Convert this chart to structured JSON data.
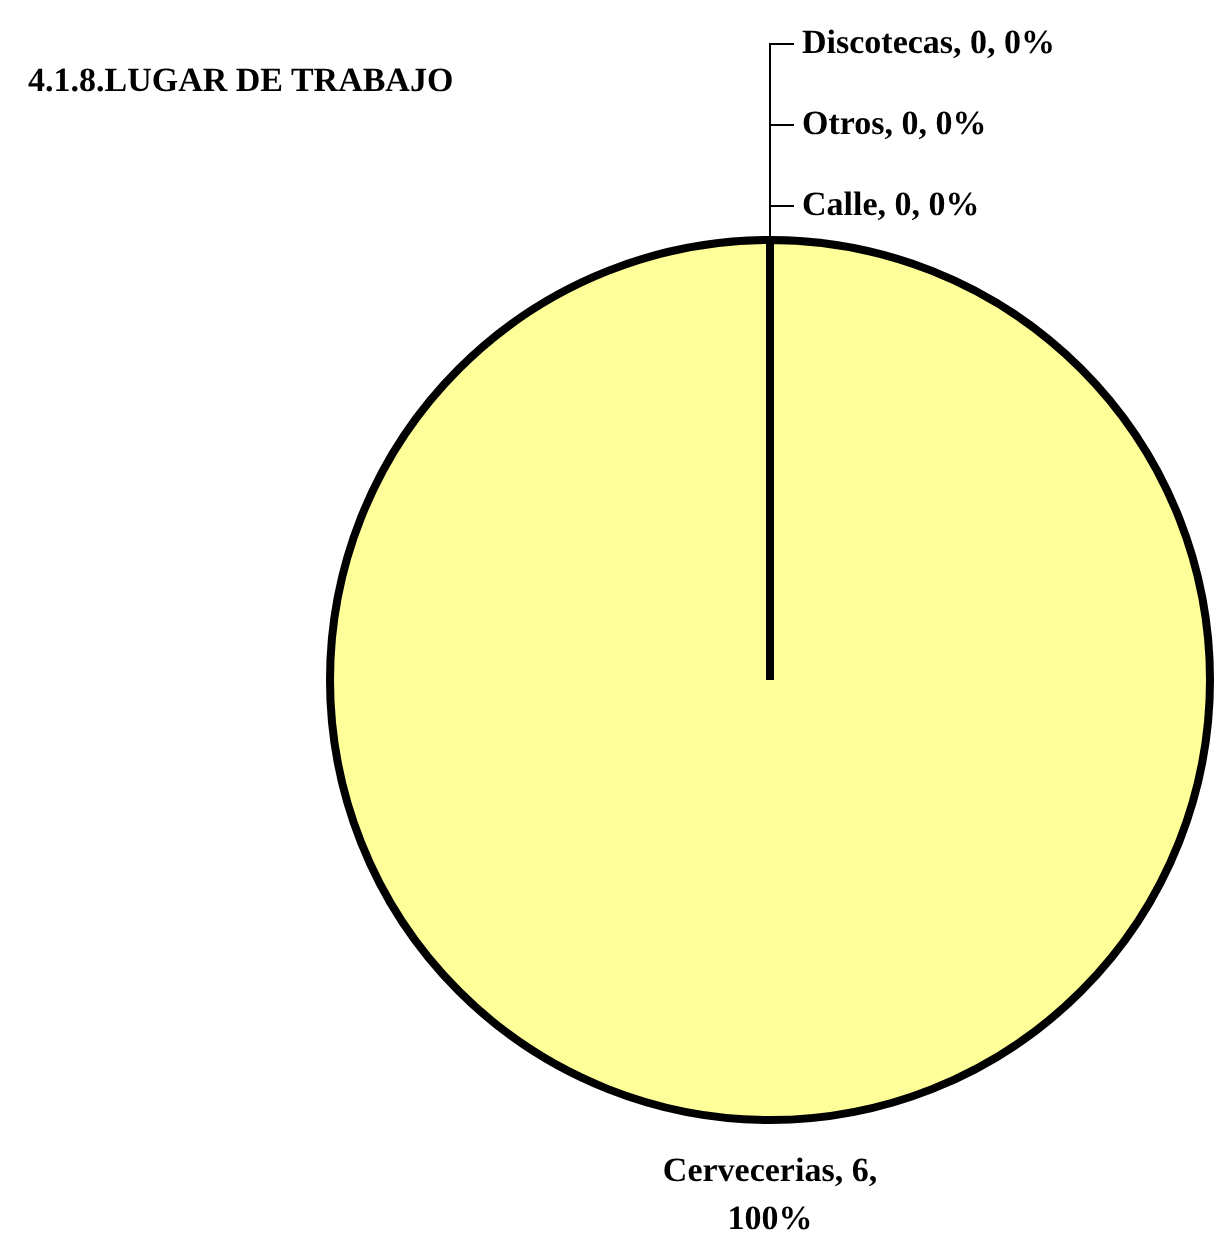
{
  "chart_data": {
    "type": "pie",
    "title": "4.1.8.LUGAR DE TRABAJO",
    "categories": [
      "Cervecerias",
      "Calle",
      "Otros",
      "Discotecas"
    ],
    "values": [
      6,
      0,
      0,
      0
    ],
    "value_labels": [
      ", 6, 100%",
      ", 0, 0%",
      ", 0, 0%",
      ", 0, 0%"
    ],
    "colors": [
      "#ffff99",
      "#9999ff",
      "#993366",
      "#ffffcc"
    ]
  }
}
